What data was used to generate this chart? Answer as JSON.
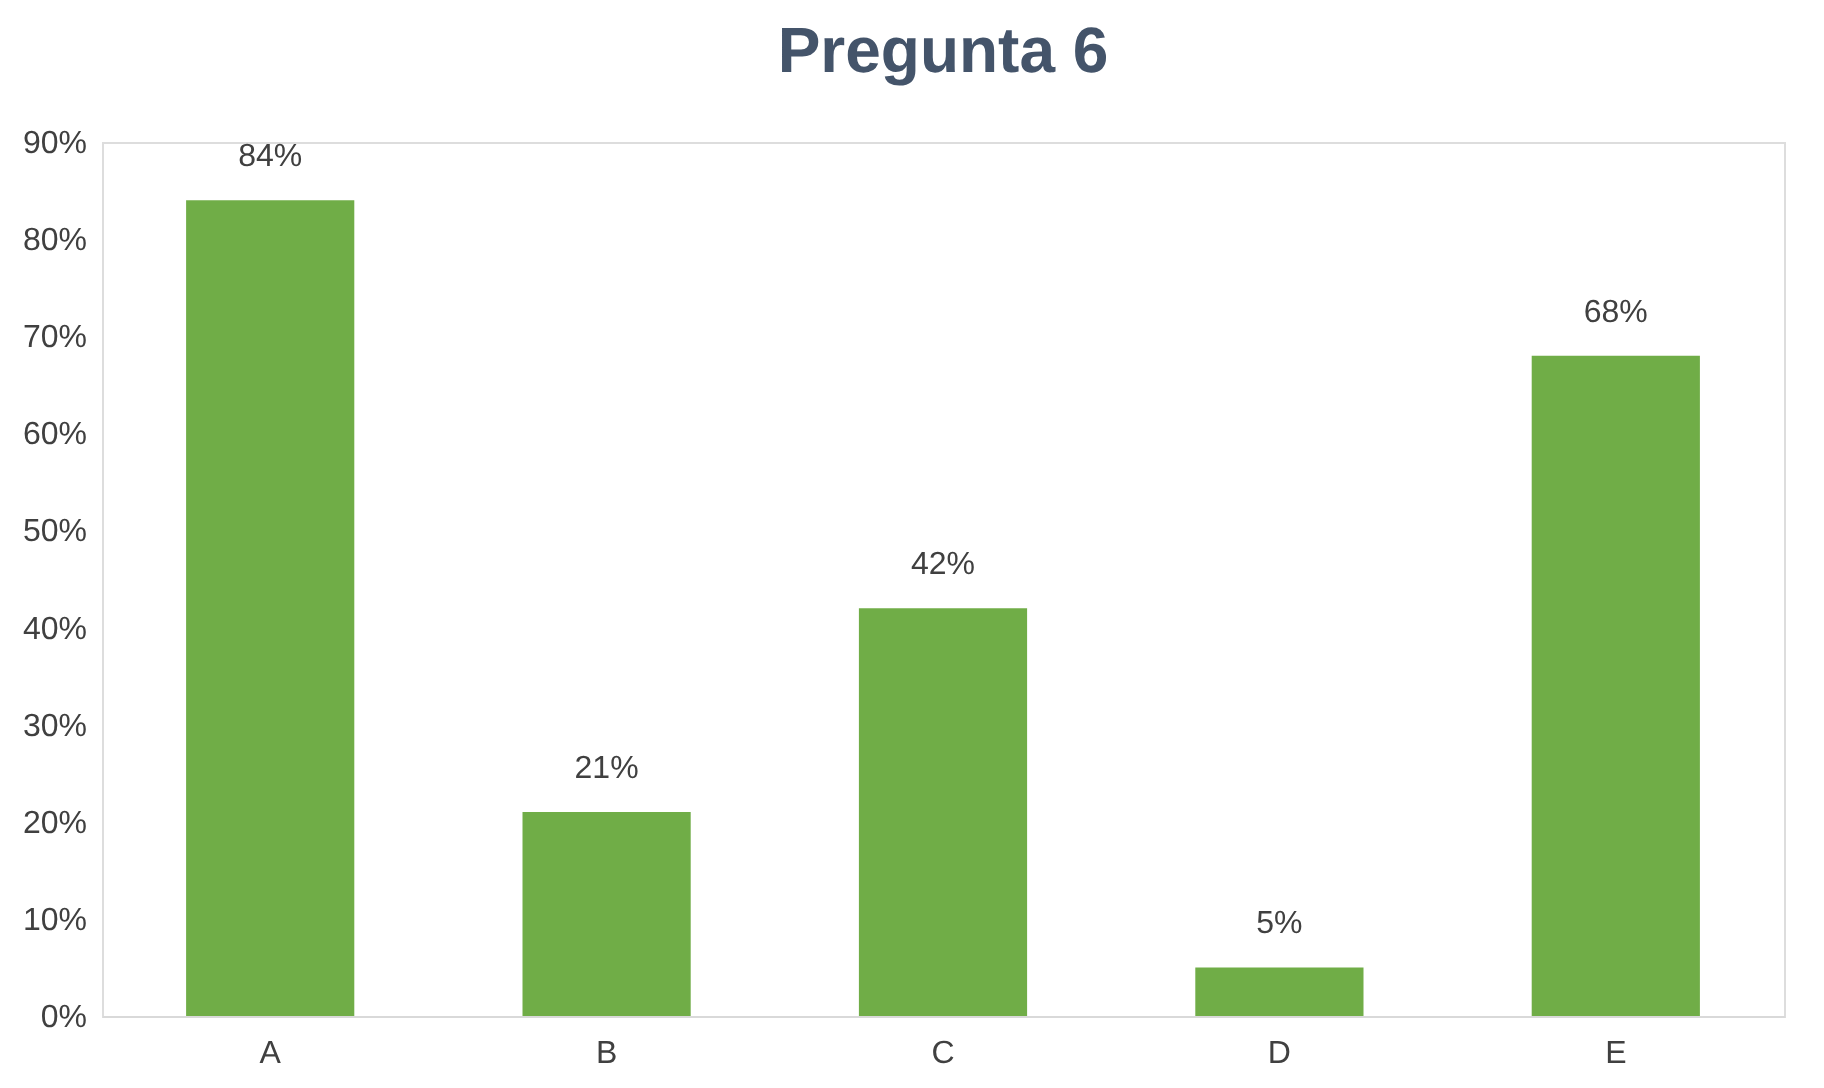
{
  "chart_data": {
    "type": "bar",
    "title": "Pregunta 6",
    "categories": [
      "A",
      "B",
      "C",
      "D",
      "E"
    ],
    "values": [
      84,
      21,
      42,
      5,
      68
    ],
    "value_labels": [
      "84%",
      "21%",
      "42%",
      "5%",
      "68%"
    ],
    "color": "#70ad47",
    "ylim": [
      0,
      90
    ],
    "yticks": [
      {
        "value": 0,
        "label": "0%"
      },
      {
        "value": 10,
        "label": "10%"
      },
      {
        "value": 20,
        "label": "20%"
      },
      {
        "value": 30,
        "label": "30%"
      },
      {
        "value": 40,
        "label": "40%"
      },
      {
        "value": 50,
        "label": "50%"
      },
      {
        "value": 60,
        "label": "60%"
      },
      {
        "value": 70,
        "label": "70%"
      },
      {
        "value": 80,
        "label": "80%"
      },
      {
        "value": 90,
        "label": "90%"
      }
    ],
    "grid": false
  }
}
